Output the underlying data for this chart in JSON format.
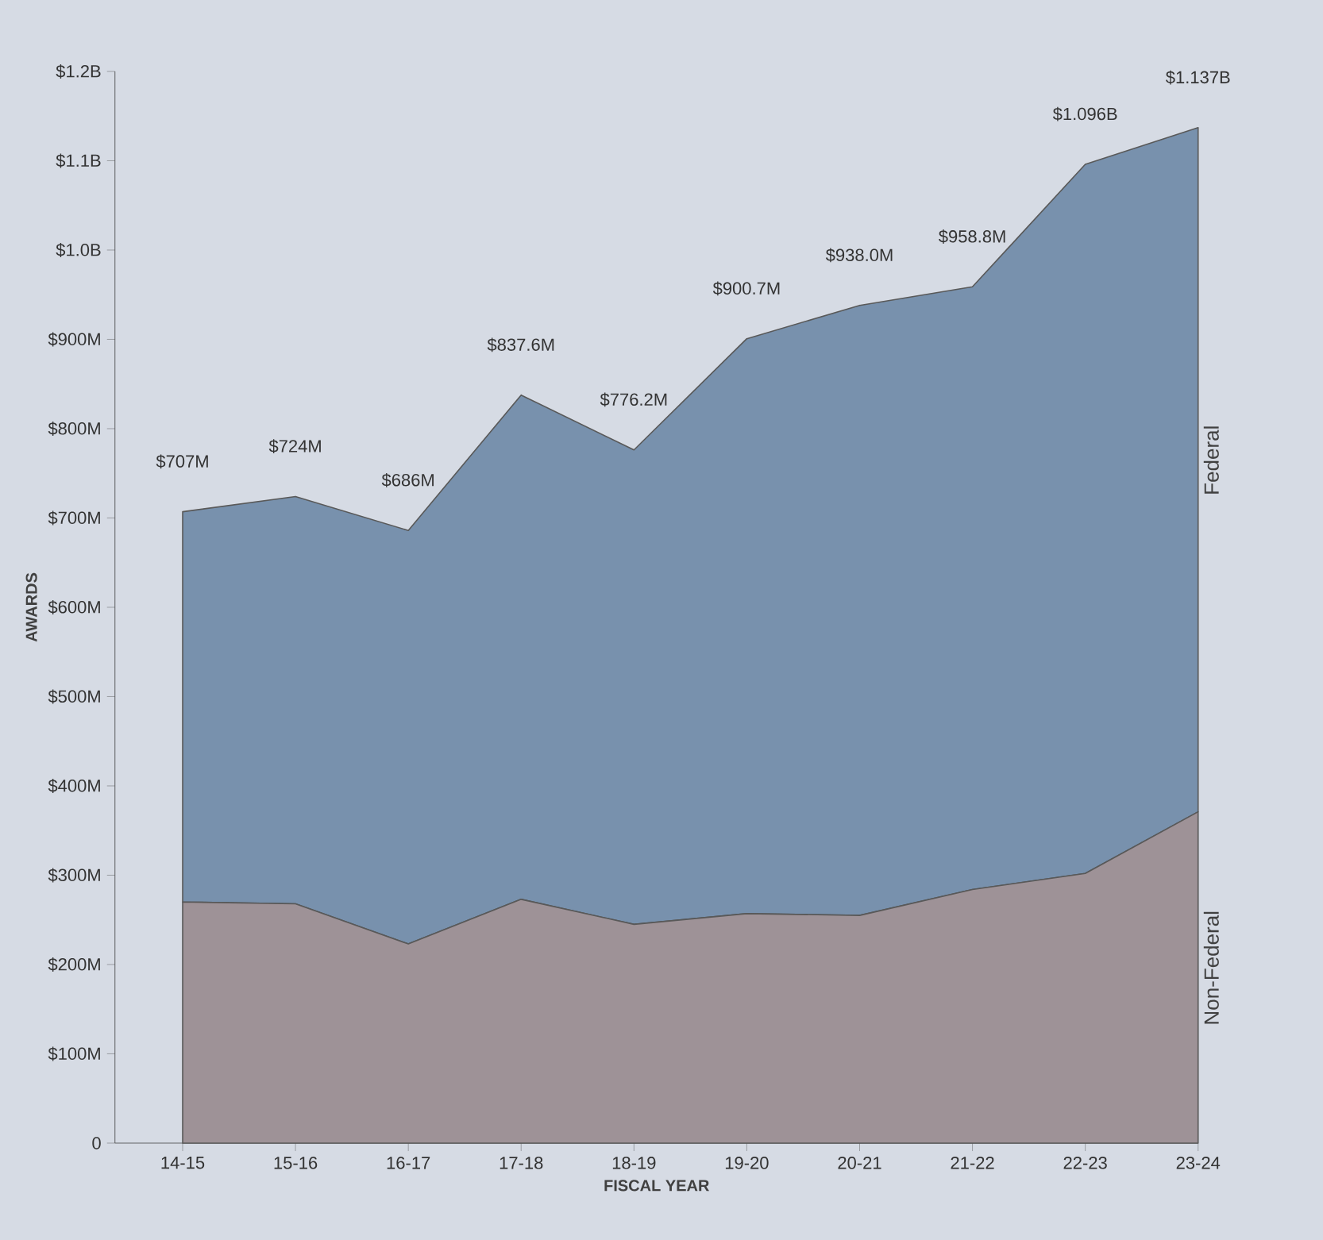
{
  "chart_data": {
    "type": "area",
    "stacked": true,
    "xlabel": "FISCAL YEAR",
    "ylabel": "AWARDS",
    "categories": [
      "14-15",
      "15-16",
      "16-17",
      "17-18",
      "18-19",
      "19-20",
      "20-21",
      "21-22",
      "22-23",
      "23-24"
    ],
    "series": [
      {
        "name": "Non-Federal",
        "color": "#9e9297",
        "values": [
          270000000,
          268000000,
          223000000,
          273000000,
          245000000,
          257000000,
          255000000,
          284000000,
          302000000,
          371000000
        ]
      },
      {
        "name": "Federal",
        "color": "#7891ad",
        "values": [
          437000000,
          456000000,
          463000000,
          564600000,
          531200000,
          643700000,
          683000000,
          674800000,
          794000000,
          766000000
        ]
      }
    ],
    "totals": [
      "$707M",
      "$724M",
      "$686M",
      "$837.6M",
      "$776.2M",
      "$900.7M",
      "$938.0M",
      "$958.8M",
      "$1.096B",
      "$1.137B"
    ],
    "ylim": [
      0,
      1200000000
    ],
    "yticks": [
      0,
      {
        "value": 100000000,
        "label": "$100M"
      },
      {
        "value": 200000000,
        "label": "$200M"
      },
      {
        "value": 300000000,
        "label": "$300M"
      },
      {
        "value": 400000000,
        "label": "$400M"
      },
      {
        "value": 500000000,
        "label": "$500M"
      },
      {
        "value": 600000000,
        "label": "$600M"
      },
      {
        "value": 700000000,
        "label": "$700M"
      },
      {
        "value": 800000000,
        "label": "$800M"
      },
      {
        "value": 900000000,
        "label": "$900M"
      },
      {
        "value": 1000000000,
        "label": "$1.0B"
      },
      {
        "value": 1100000000,
        "label": "$1.1B"
      },
      {
        "value": 1200000000,
        "label": "$1.2B"
      }
    ]
  }
}
